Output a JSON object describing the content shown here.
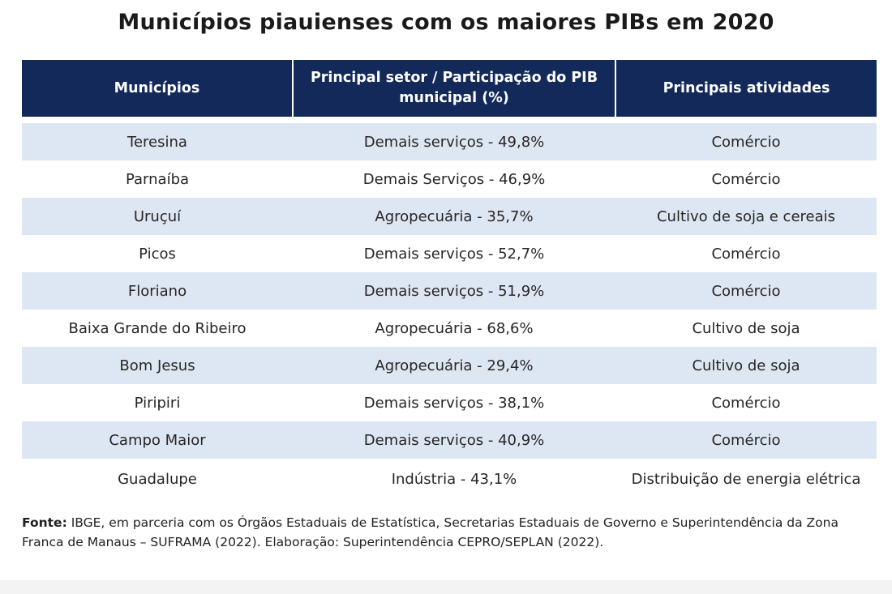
{
  "title": "Municípios piauienses com os maiores PIBs em 2020",
  "table": {
    "headers": [
      "Municípios",
      "Principal setor / Participação do PIB municipal (%)",
      "Principais atividades"
    ],
    "rows": [
      {
        "municipio": "Teresina",
        "setor": "Demais serviços - 49,8%",
        "atividade": "Comércio"
      },
      {
        "municipio": "Parnaíba",
        "setor": "Demais Serviços - 46,9%",
        "atividade": "Comércio"
      },
      {
        "municipio": "Uruçuí",
        "setor": "Agropecuária - 35,7%",
        "atividade": "Cultivo de soja e cereais"
      },
      {
        "municipio": "Picos",
        "setor": "Demais serviços - 52,7%",
        "atividade": "Comércio"
      },
      {
        "municipio": "Floriano",
        "setor": "Demais serviços - 51,9%",
        "atividade": "Comércio"
      },
      {
        "municipio": "Baixa Grande do Ribeiro",
        "setor": "Agropecuária - 68,6%",
        "atividade": "Cultivo de soja"
      },
      {
        "municipio": "Bom Jesus",
        "setor": "Agropecuária - 29,4%",
        "atividade": "Cultivo de soja"
      },
      {
        "municipio": "Piripiri",
        "setor": "Demais serviços - 38,1%",
        "atividade": "Comércio"
      },
      {
        "municipio": "Campo Maior",
        "setor": "Demais serviços - 40,9%",
        "atividade": "Comércio"
      },
      {
        "municipio": "Guadalupe",
        "setor": "Indústria - 43,1%",
        "atividade": "Distribuição de energia elétrica"
      }
    ]
  },
  "source": {
    "label": "Fonte:",
    "text": " IBGE, em parceria com os Órgãos Estaduais de Estatística, Secretarias Estaduais de Governo e Superintendência da Zona Franca de Manaus – SUFRAMA (2022). Elaboração: Superintendência CEPRO/SEPLAN (2022)."
  }
}
